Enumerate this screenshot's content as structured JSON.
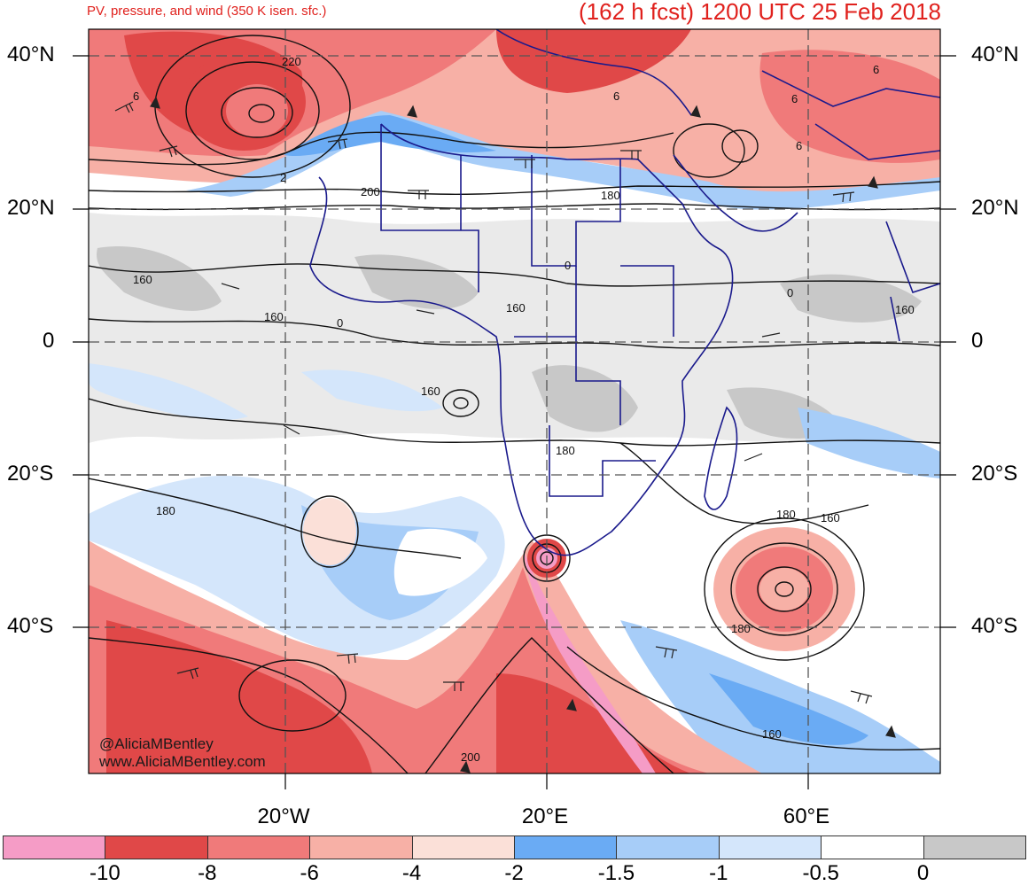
{
  "header": {
    "subtitle": "PV, pressure, and wind (350 K isen. sfc.)",
    "title": "(162 h fcst) 1200 UTC 25 Feb 2018"
  },
  "map": {
    "lat_labels": [
      "40°N",
      "20°N",
      "0",
      "20°S",
      "40°S"
    ],
    "lon_labels": [
      "20°W",
      "20°E",
      "60°E"
    ],
    "contour_labels": [
      "220",
      "200",
      "180",
      "160",
      "0",
      "6",
      "2"
    ],
    "watermark_handle": "@AliciaMBentley",
    "watermark_url": "www.AliciaMBentley.com"
  },
  "colorbar": {
    "labels": [
      "-10",
      "-8",
      "-6",
      "-4",
      "-2",
      "-1.5",
      "-1",
      "-0.5",
      "0"
    ],
    "colors": [
      "#f59cc6",
      "#e04848",
      "#f07a7a",
      "#f7b0a6",
      "#fbe0d8",
      "#6aabf4",
      "#a7cdf8",
      "#d4e6fb",
      "#ffffff",
      "#c8c8c8"
    ]
  },
  "colors": {
    "title": "#e0211d",
    "boundary": "#1a1a8c",
    "grid": "#555555"
  }
}
